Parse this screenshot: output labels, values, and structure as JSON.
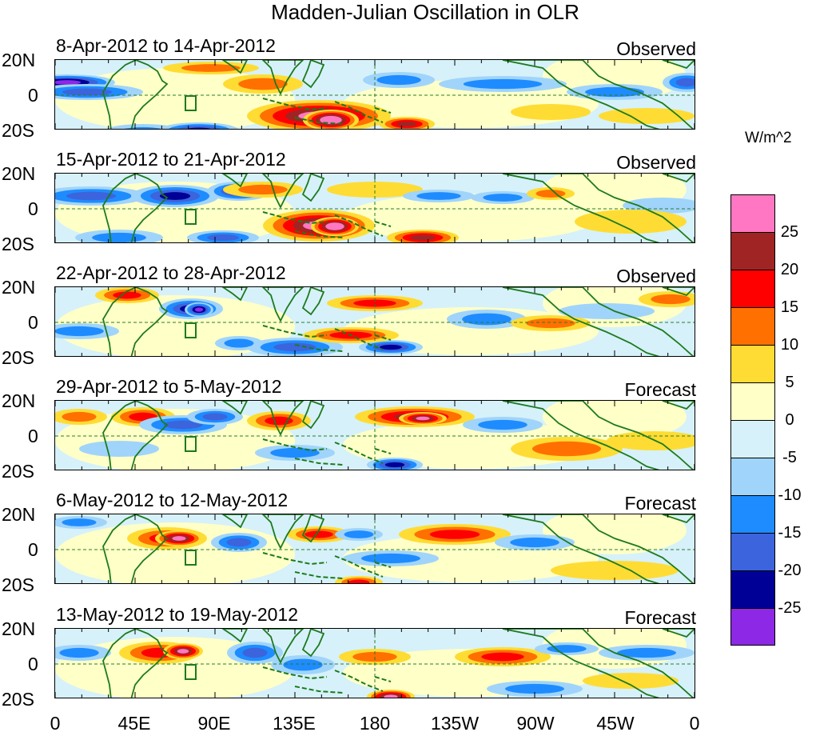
{
  "title": "Madden-Julian Oscillation in OLR",
  "units": "W/m^2",
  "lat_labels": [
    "20N",
    "0",
    "20S"
  ],
  "lon_labels": [
    "0",
    "45E",
    "90E",
    "135E",
    "180",
    "135W",
    "90W",
    "45W",
    "0"
  ],
  "colorbar": {
    "colors": [
      "#ff77c2",
      "#a02424",
      "#ff0000",
      "#ff7000",
      "#ffdc33",
      "#ffffc8",
      "#d6f1f9",
      "#a0d4fb",
      "#1e8cff",
      "#3c64dc",
      "#000096",
      "#8c28e6"
    ],
    "labels": [
      "25",
      "20",
      "15",
      "10",
      "5",
      "0",
      "-5",
      "-10",
      "-15",
      "-20",
      "-25"
    ]
  },
  "panels": [
    {
      "dates": "8-Apr-2012 to 14-Apr-2012",
      "type": "Observed"
    },
    {
      "dates": "15-Apr-2012 to 21-Apr-2012",
      "type": "Observed"
    },
    {
      "dates": "22-Apr-2012 to 28-Apr-2012",
      "type": "Observed"
    },
    {
      "dates": "29-Apr-2012 to 5-May-2012",
      "type": "Forecast"
    },
    {
      "dates": "6-May-2012 to 12-May-2012",
      "type": "Forecast"
    },
    {
      "dates": "13-May-2012 to 19-May-2012",
      "type": "Forecast"
    }
  ]
}
